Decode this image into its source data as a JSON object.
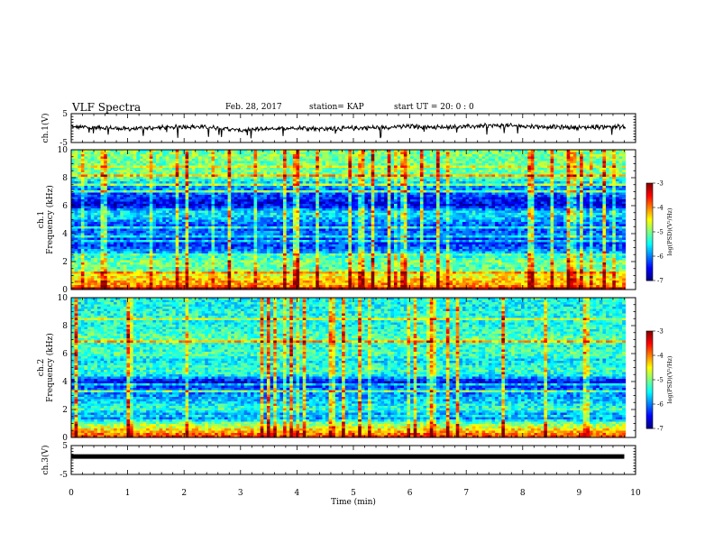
{
  "header": {
    "title": "VLF Spectra",
    "date": "Feb. 28, 2017",
    "station": "station= KAP",
    "start": "start  UT =   20: 0  : 0"
  },
  "chart_data": [
    {
      "type": "line",
      "panel": "ch1-waveform",
      "ylabel": "ch.1(V)",
      "ylim": [
        -5,
        5
      ],
      "yticks": [
        "5",
        "-5"
      ],
      "xlim": [
        0,
        10
      ],
      "color": "#000000",
      "description_values": {
        "x": [
          0,
          0.5,
          1,
          1.5,
          2,
          2.5,
          3,
          3.5,
          4,
          4.5,
          5,
          5.5,
          6,
          6.5,
          7,
          7.5,
          8,
          8.5,
          9,
          9.5,
          9.8
        ],
        "y": [
          0.4,
          0.2,
          -0.3,
          0.1,
          0.5,
          0.3,
          -0.8,
          -0.2,
          0.1,
          -0.3,
          0.0,
          0.2,
          0.6,
          0.3,
          0.5,
          0.9,
          0.7,
          0.4,
          0.2,
          0.5,
          0.4
        ]
      }
    },
    {
      "type": "heatmap",
      "panel": "ch1-spectrogram",
      "ylabel": "ch.1\nFrequency (kHz)",
      "ylim": [
        0,
        10
      ],
      "yticks": [
        "0",
        "2",
        "4",
        "6",
        "8",
        "10"
      ],
      "xlim": [
        0,
        10
      ],
      "colorbar": {
        "label": "log(PSD)(V²/Hz)",
        "range": [
          -7,
          -3
        ],
        "ticks": [
          "-3",
          "-4",
          "-5",
          "-6",
          "-7"
        ]
      },
      "freq_profile_kHz": [
        0,
        0.5,
        1,
        1.5,
        2,
        2.5,
        3,
        3.5,
        4,
        4.5,
        5,
        5.5,
        6,
        6.5,
        7,
        7.5,
        8,
        8.5,
        9,
        9.5,
        10
      ],
      "log_psd_profile": [
        -3.8,
        -4.2,
        -4.5,
        -5.2,
        -5.0,
        -5.6,
        -6.2,
        -6.4,
        -6.0,
        -6.3,
        -5.8,
        -5.5,
        -6.6,
        -6.4,
        -6.1,
        -5.8,
        -5.2,
        -5.0,
        -5.1,
        -5.0,
        -5.1
      ]
    },
    {
      "type": "heatmap",
      "panel": "ch2-spectrogram",
      "ylabel": "ch.2\nFrequency (kHz)",
      "ylim": [
        0,
        10
      ],
      "yticks": [
        "0",
        "2",
        "4",
        "6",
        "8",
        "10"
      ],
      "xlim": [
        0,
        10
      ],
      "colorbar": {
        "label": "log(PSD)(V²/Hz)",
        "range": [
          -7,
          -3
        ],
        "ticks": [
          "-3",
          "-4",
          "-5",
          "-6",
          "-7"
        ]
      },
      "freq_profile_kHz": [
        0,
        0.5,
        1,
        1.5,
        2,
        2.5,
        3,
        3.5,
        4,
        4.5,
        5,
        5.5,
        6,
        6.5,
        7,
        7.5,
        8,
        8.5,
        9,
        9.5,
        10
      ],
      "log_psd_profile": [
        -3.6,
        -4.3,
        -5.0,
        -6.2,
        -5.3,
        -5.6,
        -5.9,
        -6.1,
        -6.6,
        -5.4,
        -5.3,
        -5.6,
        -5.2,
        -5.4,
        -5.1,
        -5.3,
        -5.4,
        -5.4,
        -5.4,
        -5.5,
        -5.4
      ]
    },
    {
      "type": "line",
      "panel": "ch3-waveform",
      "ylabel": "ch.3(V)",
      "ylim": [
        -5,
        5
      ],
      "yticks": [
        "5",
        "-5"
      ],
      "xlim": [
        0,
        10
      ],
      "color": "#000000",
      "x": [
        0,
        9.8
      ],
      "y": [
        1.2,
        1.2
      ]
    }
  ],
  "xaxis": {
    "label": "Time (min)",
    "ticks": [
      "0",
      "1",
      "2",
      "3",
      "4",
      "5",
      "6",
      "7",
      "8",
      "9",
      "10"
    ],
    "range": [
      0,
      10
    ]
  }
}
